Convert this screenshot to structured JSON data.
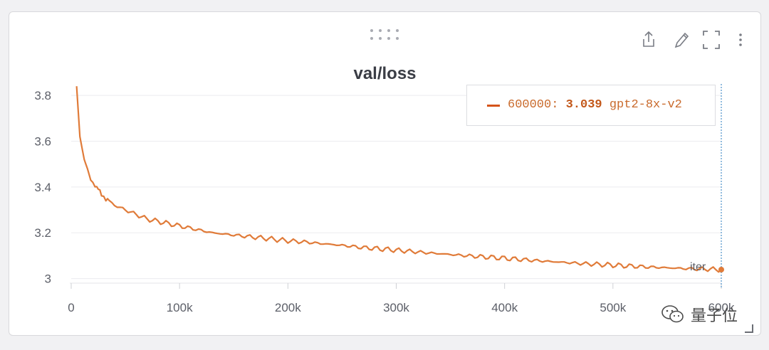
{
  "panel": {
    "title": "val/loss",
    "toolbar": {
      "share_icon": "share-icon",
      "edit_icon": "pencil-icon",
      "fullscreen_icon": "fullscreen-icon",
      "menu_icon": "more-vertical-icon"
    }
  },
  "legend": {
    "step": "600000:",
    "value": "3.039",
    "run": "gpt2-8x-v2",
    "color": "#d5541a"
  },
  "axis_hint": "iter",
  "watermark": {
    "text": "量子位",
    "icon": "wechat-icon"
  },
  "chart_data": {
    "type": "line",
    "title": "val/loss",
    "xlabel": "iter",
    "ylabel": "",
    "xlim": [
      0,
      600000
    ],
    "ylim": [
      2.98,
      3.85
    ],
    "x_ticks": [
      0,
      100000,
      200000,
      300000,
      400000,
      500000,
      600000
    ],
    "x_tick_labels": [
      "0",
      "100k",
      "200k",
      "300k",
      "400k",
      "500k",
      "600k"
    ],
    "y_ticks": [
      3.0,
      3.2,
      3.4,
      3.6,
      3.8
    ],
    "y_tick_labels": [
      "3",
      "3.2",
      "3.4",
      "3.6",
      "3.8"
    ],
    "grid": true,
    "legend_position": "top-right",
    "hover_x": 600000,
    "series": [
      {
        "name": "gpt2-8x-v2",
        "color": "#e07b39",
        "x": [
          5000,
          8000,
          12000,
          15000,
          18000,
          22000,
          25000,
          28000,
          32000,
          35000,
          40000,
          45000,
          50000,
          55000,
          60000,
          70000,
          80000,
          90000,
          100000,
          110000,
          120000,
          130000,
          140000,
          150000,
          160000,
          175000,
          190000,
          200000,
          215000,
          230000,
          250000,
          270000,
          290000,
          310000,
          330000,
          350000,
          370000,
          390000,
          410000,
          430000,
          450000,
          470000,
          490000,
          510000,
          530000,
          550000,
          570000,
          590000,
          600000
        ],
        "y": [
          3.84,
          3.62,
          3.52,
          3.48,
          3.43,
          3.41,
          3.39,
          3.37,
          3.35,
          3.34,
          3.32,
          3.31,
          3.3,
          3.29,
          3.28,
          3.26,
          3.25,
          3.24,
          3.23,
          3.22,
          3.21,
          3.2,
          3.195,
          3.19,
          3.185,
          3.178,
          3.17,
          3.165,
          3.16,
          3.153,
          3.145,
          3.135,
          3.128,
          3.12,
          3.112,
          3.105,
          3.098,
          3.092,
          3.085,
          3.078,
          3.072,
          3.066,
          3.061,
          3.056,
          3.051,
          3.047,
          3.043,
          3.041,
          3.039
        ]
      }
    ]
  }
}
